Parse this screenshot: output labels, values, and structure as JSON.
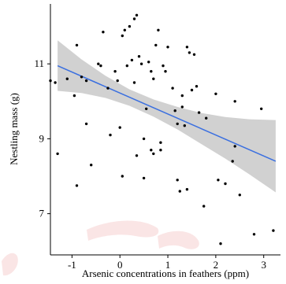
{
  "chart_data": {
    "type": "scatter",
    "xlabel": "Arsenic concentrations in feathers (ppm)",
    "ylabel": "Nestling mass (g)",
    "xlim": [
      -1.45,
      3.35
    ],
    "ylim": [
      5.9,
      12.6
    ],
    "xticks": [
      -1,
      0,
      1,
      2,
      3
    ],
    "yticks": [
      7,
      9,
      11
    ],
    "xtick_labels": [
      "-1",
      "0",
      "1",
      "2",
      "3"
    ],
    "ytick_labels": [
      "7",
      "9",
      "11"
    ],
    "grid": false,
    "trend_color": "#3a6fe0",
    "band_color": "#bdbdbd",
    "trend": {
      "x": [
        -1.3,
        3.25
      ],
      "y": [
        10.95,
        8.4
      ]
    },
    "confidence_band": {
      "x": [
        -1.3,
        -0.8,
        -0.3,
        0.2,
        0.7,
        1.2,
        1.7,
        2.2,
        2.7,
        3.25
      ],
      "upper": [
        11.63,
        11.12,
        10.68,
        10.32,
        10.05,
        9.85,
        9.69,
        9.58,
        9.52,
        9.5
      ],
      "lower": [
        10.28,
        10.22,
        10.09,
        9.88,
        9.59,
        9.25,
        8.86,
        8.47,
        8.05,
        7.57
      ]
    },
    "points": [
      [
        -1.45,
        10.55
      ],
      [
        -1.35,
        10.5
      ],
      [
        -1.3,
        8.6
      ],
      [
        -1.1,
        10.6
      ],
      [
        -0.95,
        10.15
      ],
      [
        -0.9,
        11.5
      ],
      [
        -0.9,
        7.75
      ],
      [
        -0.8,
        10.65
      ],
      [
        -0.7,
        10.55
      ],
      [
        -0.7,
        9.4
      ],
      [
        -0.6,
        8.3
      ],
      [
        -0.45,
        11.0
      ],
      [
        -0.4,
        10.95
      ],
      [
        -0.35,
        11.85
      ],
      [
        -0.25,
        10.35
      ],
      [
        -0.2,
        9.1
      ],
      [
        -0.1,
        10.8
      ],
      [
        -0.05,
        10.55
      ],
      [
        0.0,
        9.3
      ],
      [
        0.05,
        11.75
      ],
      [
        0.05,
        8.0
      ],
      [
        0.1,
        11.9
      ],
      [
        0.15,
        10.95
      ],
      [
        0.2,
        12.0
      ],
      [
        0.25,
        11.1
      ],
      [
        0.3,
        12.2
      ],
      [
        0.3,
        10.5
      ],
      [
        0.35,
        8.55
      ],
      [
        0.35,
        12.3
      ],
      [
        0.4,
        11.2
      ],
      [
        0.45,
        11.0
      ],
      [
        0.5,
        9.0
      ],
      [
        0.5,
        7.95
      ],
      [
        0.55,
        9.8
      ],
      [
        0.6,
        11.05
      ],
      [
        0.65,
        10.8
      ],
      [
        0.65,
        8.7
      ],
      [
        0.7,
        10.6
      ],
      [
        0.7,
        8.6
      ],
      [
        0.75,
        11.5
      ],
      [
        0.8,
        11.9
      ],
      [
        0.85,
        8.9
      ],
      [
        0.85,
        8.7
      ],
      [
        0.9,
        10.95
      ],
      [
        0.95,
        10.8
      ],
      [
        1.0,
        11.45
      ],
      [
        1.1,
        10.35
      ],
      [
        1.15,
        9.75
      ],
      [
        1.2,
        7.9
      ],
      [
        1.2,
        9.4
      ],
      [
        1.25,
        7.6
      ],
      [
        1.3,
        10.15
      ],
      [
        1.3,
        9.85
      ],
      [
        1.35,
        9.35
      ],
      [
        1.4,
        11.45
      ],
      [
        1.4,
        7.65
      ],
      [
        1.45,
        11.3
      ],
      [
        1.5,
        10.3
      ],
      [
        1.55,
        11.25
      ],
      [
        1.6,
        10.4
      ],
      [
        1.65,
        9.7
      ],
      [
        1.75,
        7.2
      ],
      [
        1.8,
        9.55
      ],
      [
        2.0,
        10.2
      ],
      [
        2.05,
        7.9
      ],
      [
        2.1,
        6.2
      ],
      [
        2.2,
        7.8
      ],
      [
        2.35,
        8.4
      ],
      [
        2.4,
        8.8
      ],
      [
        2.5,
        7.5
      ],
      [
        2.8,
        6.45
      ],
      [
        2.95,
        9.8
      ],
      [
        3.2,
        6.55
      ],
      [
        2.4,
        10.0
      ]
    ]
  }
}
